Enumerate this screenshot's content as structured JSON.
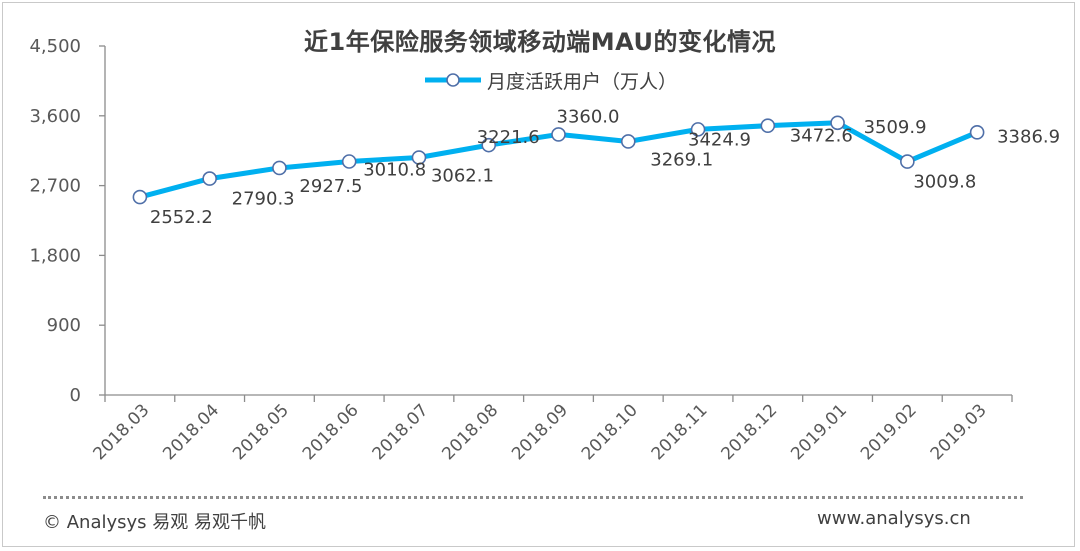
{
  "chart_data": {
    "type": "line",
    "title": "近1年保险服务领域移动端MAU的变化情况",
    "categories": [
      "2018.03",
      "2018.04",
      "2018.05",
      "2018.06",
      "2018.07",
      "2018.08",
      "2018.09",
      "2018.10",
      "2018.11",
      "2018.12",
      "2019.01",
      "2019.02",
      "2019.03"
    ],
    "series": [
      {
        "name": "月度活跃用户（万人）",
        "values": [
          2552.2,
          2790.3,
          2927.5,
          3010.8,
          3062.1,
          3221.6,
          3360.0,
          3269.1,
          3424.9,
          3472.6,
          3509.9,
          3009.8,
          3386.9
        ],
        "labels": [
          "2552.2",
          "2790.3",
          "2927.5",
          "3010.8",
          "3062.1",
          "3221.6",
          "3360.0",
          "3269.1",
          "3424.9",
          "3472.6",
          "3509.9",
          "3009.8",
          "3386.9"
        ],
        "color": "#00b0f0"
      }
    ],
    "ylim": [
      0,
      4500
    ],
    "yticks": [
      0,
      900,
      1800,
      2700,
      3600,
      4500
    ],
    "ytick_labels": [
      "0",
      "900",
      "1,800",
      "2,700",
      "3,600",
      "4,500"
    ],
    "legend_position": "top-center",
    "grid": false
  },
  "footer": {
    "left": "© Analysys 易观 易观千帆",
    "right": "www.analysys.cn"
  }
}
